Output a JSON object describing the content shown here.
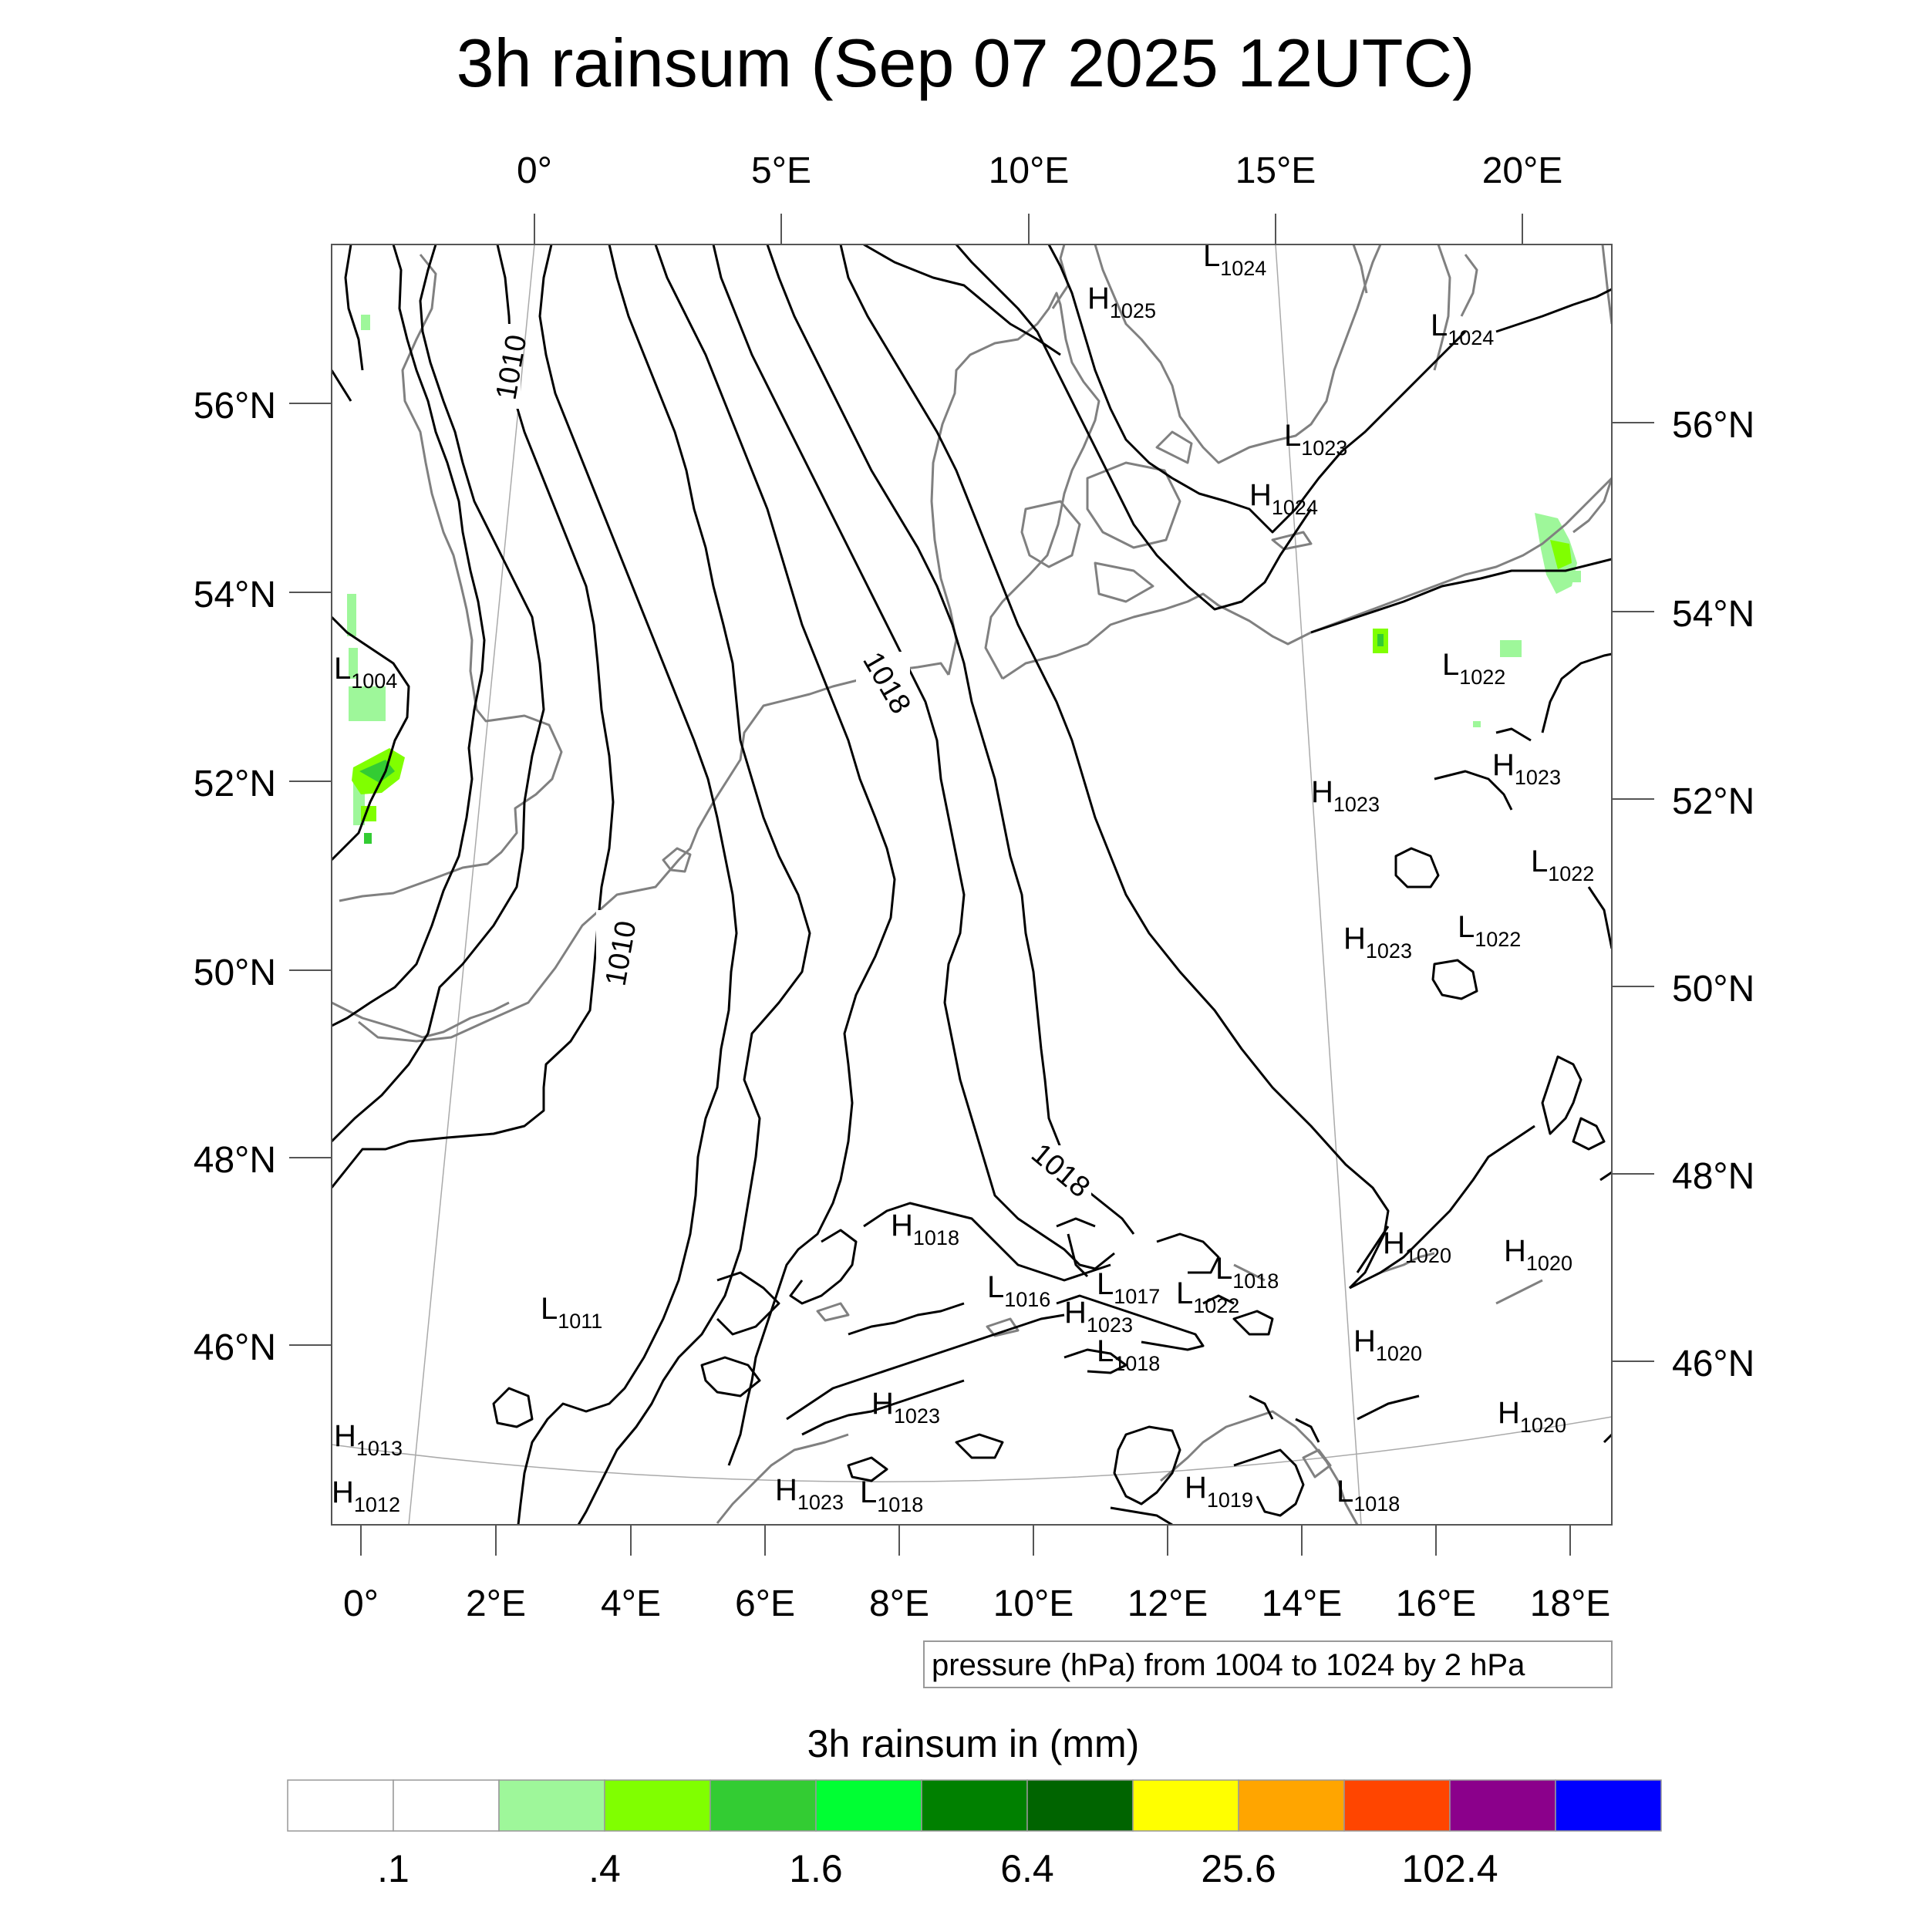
{
  "title": "3h rainsum (Sep 07 2025 12UTC)",
  "lon_top_labels": [
    "0°",
    "5°E",
    "10°E",
    "15°E",
    "20°E"
  ],
  "lon_bottom_labels": [
    "0°",
    "2°E",
    "4°E",
    "6°E",
    "8°E",
    "10°E",
    "12°E",
    "14°E",
    "16°E",
    "18°E"
  ],
  "lat_left_labels": [
    "56°N",
    "54°N",
    "52°N",
    "50°N",
    "48°N",
    "46°N"
  ],
  "lat_right_labels": [
    "56°N",
    "54°N",
    "52°N",
    "50°N",
    "48°N",
    "46°N"
  ],
  "contour_labels": [
    "1010",
    "1018",
    "1010",
    "1018"
  ],
  "pressure_centers": [
    {
      "type": "L",
      "value": "1024"
    },
    {
      "type": "H",
      "value": "1025"
    },
    {
      "type": "L",
      "value": "1024"
    },
    {
      "type": "L",
      "value": "1023"
    },
    {
      "type": "H",
      "value": "1024"
    },
    {
      "type": "L",
      "value": "1004"
    },
    {
      "type": "L",
      "value": "1022"
    },
    {
      "type": "H",
      "value": "1023"
    },
    {
      "type": "H",
      "value": "1023"
    },
    {
      "type": "L",
      "value": "1022"
    },
    {
      "type": "L",
      "value": "1022"
    },
    {
      "type": "H",
      "value": "1023"
    },
    {
      "type": "H",
      "value": "1018"
    },
    {
      "type": "L",
      "value": "1016"
    },
    {
      "type": "L",
      "value": "1017"
    },
    {
      "type": "L",
      "value": "1018"
    },
    {
      "type": "L",
      "value": "1022"
    },
    {
      "type": "H",
      "value": "1023"
    },
    {
      "type": "L",
      "value": "1018"
    },
    {
      "type": "L",
      "value": "1011"
    },
    {
      "type": "H",
      "value": "1020"
    },
    {
      "type": "H",
      "value": "1020"
    },
    {
      "type": "H",
      "value": "1020"
    },
    {
      "type": "H",
      "value": "1023"
    },
    {
      "type": "H",
      "value": "1013"
    },
    {
      "type": "H",
      "value": "1023"
    },
    {
      "type": "L",
      "value": "1018"
    },
    {
      "type": "H",
      "value": "1019"
    },
    {
      "type": "L",
      "value": "1018"
    },
    {
      "type": "H",
      "value": "1020"
    },
    {
      "type": "H",
      "value": "1012"
    }
  ],
  "contour_info": "pressure (hPa) from 1004 to 1024 by 2 hPa",
  "colorbar": {
    "title": "3h rainsum in (mm)",
    "colors": [
      "#ffffff",
      "#ffffff",
      "#9ef79a",
      "#80ff00",
      "#33cc33",
      "#00ff33",
      "#008000",
      "#006400",
      "#ffff00",
      "#ffa500",
      "#ff4500",
      "#8b008b",
      "#0000ff"
    ],
    "labels": [
      ".1",
      ".4",
      "1.6",
      "6.4",
      "25.6",
      "102.4"
    ]
  },
  "colors": {
    "coastline": "#808080",
    "isobar": "#000000",
    "frame": "#555555",
    "graticule": "#aaaaaa"
  }
}
